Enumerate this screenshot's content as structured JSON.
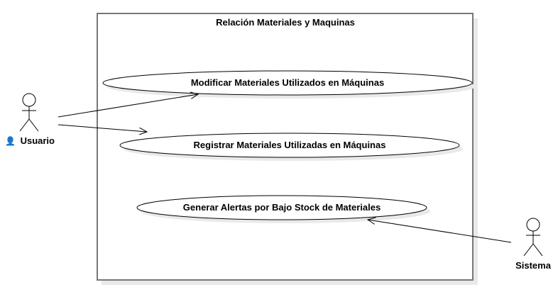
{
  "system_boundary": {
    "title": "Relación Materiales y Maquinas"
  },
  "use_cases": [
    {
      "label": "Modificar Materiales Utilizados en Máquinas"
    },
    {
      "label": "Registrar Materiales Utilizadas en Máquinas"
    },
    {
      "label": "Generar Alertas por Bajo Stock de Materiales"
    }
  ],
  "actors": [
    {
      "name": "Usuario",
      "icon": "user-icon",
      "icon_glyph": "👤"
    },
    {
      "name": "Sistema"
    }
  ],
  "colors": {
    "line": "#000000",
    "shadow": "#e6e6e6",
    "fill": "#ffffff"
  }
}
